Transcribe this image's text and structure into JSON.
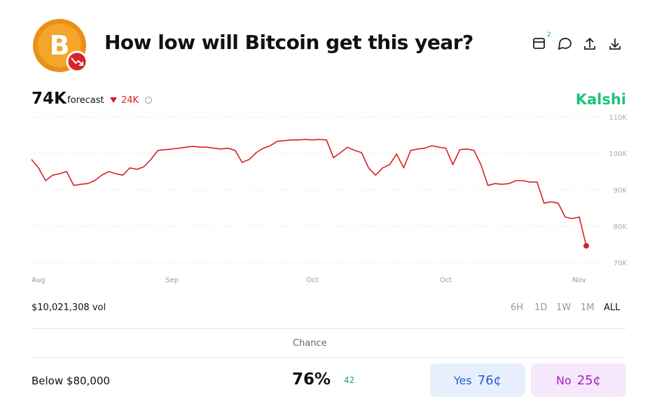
{
  "header": {
    "title": "How low will Bitcoin get this year?",
    "calendar_badge": "2"
  },
  "forecast": {
    "value": "74K",
    "label": "forecast",
    "change": "24K",
    "brand": "Kalshi"
  },
  "chart_data": {
    "type": "line",
    "categories": [
      null,
      "Aug",
      null,
      null,
      null,
      null,
      null,
      null,
      null,
      null,
      null,
      null,
      null,
      null,
      null,
      null,
      null,
      null,
      null,
      null,
      "Sep",
      null,
      null,
      null,
      null,
      null,
      null,
      null,
      null,
      null,
      null,
      null,
      null,
      null,
      null,
      null,
      null,
      null,
      null,
      null,
      "Oct",
      null,
      null,
      null,
      null,
      null,
      null,
      null,
      null,
      null,
      null,
      null,
      null,
      null,
      null,
      null,
      null,
      null,
      null,
      "Oct",
      null,
      null,
      null,
      null,
      null,
      null,
      null,
      null,
      null,
      null,
      null,
      null,
      null,
      null,
      null,
      null,
      null,
      null,
      "Nov",
      null
    ],
    "values": [
      98.3,
      96,
      92.5,
      94,
      94.4,
      95,
      91.2,
      91.5,
      91.7,
      92.5,
      94,
      95,
      94.4,
      94,
      96,
      95.6,
      96.3,
      98.3,
      100.8,
      101,
      101.2,
      101.4,
      101.7,
      101.9,
      101.7,
      101.7,
      101.4,
      101.2,
      101.4,
      100.8,
      97.5,
      98.3,
      100.2,
      101.4,
      102.1,
      103.3,
      103.5,
      103.7,
      103.7,
      103.8,
      103.7,
      103.8,
      103.7,
      98.8,
      100.2,
      101.7,
      100.8,
      100.2,
      96,
      94,
      96,
      96.9,
      99.8,
      96,
      100.8,
      101.2,
      101.4,
      102.1,
      101.7,
      101.4,
      96.9,
      101,
      101.2,
      100.8,
      96.9,
      91.2,
      91.7,
      91.5,
      91.7,
      92.5,
      92.5,
      92.1,
      92.1,
      86.3,
      86.7,
      86.3,
      82.5,
      82.1,
      82.5,
      74.6
    ],
    "color": "#d91f26",
    "ylim": [
      70,
      110
    ],
    "yticks": [
      {
        "value": 70,
        "label": "70K"
      },
      {
        "value": 80,
        "label": "80K"
      },
      {
        "value": 90,
        "label": "90K"
      },
      {
        "value": 100,
        "label": "100K"
      },
      {
        "value": 110,
        "label": "110K"
      }
    ],
    "grid": true
  },
  "volume": "$10,021,308 vol",
  "ranges": [
    "6H",
    "1D",
    "1W",
    "1M",
    "ALL"
  ],
  "market": {
    "column": "Chance",
    "name": "Below $80,000",
    "chance": "76%",
    "change": "42",
    "yes_label": "Yes",
    "yes_price": "76¢",
    "no_label": "No",
    "no_price": "25¢"
  }
}
